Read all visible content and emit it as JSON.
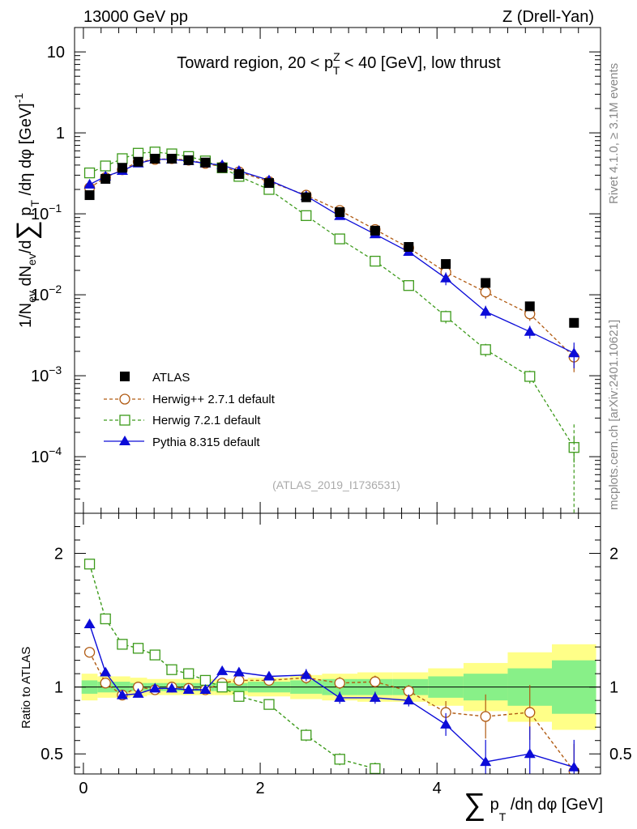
{
  "header": {
    "left": "13000 GeV pp",
    "right": "Z (Drell-Yan)"
  },
  "side_labels": {
    "rivet": "Rivet 4.1.0, ≥ 3.1M events",
    "mcplots": "mcplots.cern.ch [arXiv:2401.10621]"
  },
  "chart_data": [
    {
      "type": "scatter",
      "yscale": "log",
      "title": "Toward region, 20 < pTZ < 40 [GeV], low thrust",
      "title_parts": {
        "pre": "Toward region, 20 < p",
        "sup": "Z",
        "sub": "T",
        "post": " < 40 [GeV], low thrust"
      },
      "ylabel": "1/Nev dNev/d∑pT/dη dφ [GeV]-1",
      "ylabel_parts": [
        "1/N",
        "ev",
        " dN",
        "ev",
        "/d",
        "∑",
        " p",
        "T",
        " /dη dφ  [GeV]",
        "-1"
      ],
      "xlim": [
        -0.1,
        5.85
      ],
      "ylim": [
        2e-05,
        20
      ],
      "y_ticks": [
        {
          "value": 10,
          "label": "10"
        },
        {
          "value": 1,
          "label": "1"
        },
        {
          "value": 0.1,
          "label": "10",
          "exp": "−1"
        },
        {
          "value": 0.01,
          "label": "10",
          "exp": "−2"
        },
        {
          "value": 0.001,
          "label": "10",
          "exp": "−3"
        },
        {
          "value": 0.0001,
          "label": "10",
          "exp": "−4"
        }
      ],
      "watermark": "(ATLAS_2019_I1736531)",
      "legend_position": "bottom-left",
      "series": [
        {
          "name": "ATLAS",
          "color": "#000000",
          "marker": "square-filled",
          "line": "none",
          "x": [
            0.07,
            0.25,
            0.44,
            0.62,
            0.81,
            1.0,
            1.19,
            1.38,
            1.57,
            1.76,
            2.1,
            2.52,
            2.9,
            3.3,
            3.68,
            4.1,
            4.55,
            5.05,
            5.55
          ],
          "y": [
            0.17,
            0.27,
            0.37,
            0.44,
            0.48,
            0.48,
            0.46,
            0.43,
            0.37,
            0.31,
            0.24,
            0.16,
            0.105,
            0.062,
            0.039,
            0.024,
            0.014,
            0.0072,
            0.0045
          ]
        },
        {
          "name": "Herwig++ 2.7.1 default",
          "color": "#b05a12",
          "marker": "circle-open",
          "line": "dashed",
          "x": [
            0.07,
            0.25,
            0.44,
            0.62,
            0.81,
            1.0,
            1.19,
            1.38,
            1.57,
            1.76,
            2.1,
            2.52,
            2.9,
            3.3,
            3.68,
            4.1,
            4.55,
            5.05,
            5.55
          ],
          "y": [
            0.21,
            0.28,
            0.35,
            0.44,
            0.47,
            0.48,
            0.46,
            0.42,
            0.38,
            0.33,
            0.25,
            0.17,
            0.11,
            0.064,
            0.038,
            0.019,
            0.0108,
            0.0058,
            0.0017
          ]
        },
        {
          "name": "Herwig 7.2.1 default",
          "color": "#3c9a1a",
          "marker": "square-open",
          "line": "dashed",
          "x": [
            0.07,
            0.25,
            0.44,
            0.62,
            0.81,
            1.0,
            1.19,
            1.38,
            1.57,
            1.76,
            2.1,
            2.52,
            2.9,
            3.3,
            3.68,
            4.1,
            4.55,
            5.05,
            5.55
          ],
          "y": [
            0.32,
            0.39,
            0.48,
            0.56,
            0.58,
            0.55,
            0.51,
            0.45,
            0.37,
            0.29,
            0.2,
            0.095,
            0.049,
            0.026,
            0.013,
            0.0054,
            0.0021,
            0.00098,
            0.00013
          ]
        },
        {
          "name": "Pythia 8.315 default",
          "color": "#0c0cd8",
          "marker": "triangle-filled",
          "line": "solid",
          "x": [
            0.07,
            0.25,
            0.44,
            0.62,
            0.81,
            1.0,
            1.19,
            1.38,
            1.57,
            1.76,
            2.1,
            2.52,
            2.9,
            3.3,
            3.68,
            4.1,
            4.55,
            5.05,
            5.55
          ],
          "y": [
            0.23,
            0.29,
            0.34,
            0.42,
            0.47,
            0.47,
            0.45,
            0.42,
            0.4,
            0.34,
            0.26,
            0.166,
            0.094,
            0.056,
            0.034,
            0.016,
            0.0062,
            0.0035,
            0.0019
          ]
        }
      ]
    },
    {
      "type": "scatter",
      "ylabel": "Ratio to ATLAS",
      "xlabel": "∑pT/dη dφ [GeV]",
      "xlabel_parts": [
        "∑",
        " p",
        "T",
        " /dη dφ [GeV]"
      ],
      "xlim": [
        -0.1,
        5.85
      ],
      "ylim": [
        0.35,
        2.3
      ],
      "x_ticks": [
        {
          "value": 0,
          "label": "0"
        },
        {
          "value": 2,
          "label": "2"
        },
        {
          "value": 4,
          "label": "4"
        }
      ],
      "y_ticks": [
        {
          "value": 2,
          "label": "2"
        },
        {
          "value": 1,
          "label": "1"
        },
        {
          "value": 0.5,
          "label": "0.5"
        }
      ],
      "bands": {
        "x_edges": [
          -0.02,
          0.16,
          0.34,
          0.53,
          0.72,
          0.9,
          1.1,
          1.28,
          1.48,
          1.67,
          1.86,
          2.34,
          2.7,
          3.1,
          3.5,
          3.9,
          4.3,
          4.8,
          5.3,
          5.8
        ],
        "stat_syst": [
          0.1,
          0.08,
          0.08,
          0.07,
          0.06,
          0.06,
          0.06,
          0.06,
          0.06,
          0.06,
          0.07,
          0.09,
          0.1,
          0.11,
          0.11,
          0.14,
          0.18,
          0.26,
          0.32
        ],
        "stat": [
          0.05,
          0.04,
          0.04,
          0.03,
          0.03,
          0.03,
          0.03,
          0.03,
          0.03,
          0.03,
          0.04,
          0.05,
          0.06,
          0.06,
          0.06,
          0.08,
          0.1,
          0.14,
          0.2
        ],
        "outer_color": "#ffff88",
        "inner_color": "#88f088"
      },
      "series": [
        {
          "name": "Herwig++ 2.7.1 default",
          "color": "#b05a12",
          "x": [
            0.07,
            0.25,
            0.44,
            0.62,
            0.81,
            1.0,
            1.19,
            1.38,
            1.57,
            1.76,
            2.1,
            2.52,
            2.9,
            3.3,
            3.68,
            4.1,
            4.55,
            5.05,
            5.55
          ],
          "y": [
            1.26,
            1.03,
            0.94,
            1.0,
            0.98,
            1.0,
            0.99,
            0.98,
            1.03,
            1.05,
            1.05,
            1.07,
            1.03,
            1.04,
            0.97,
            0.81,
            0.78,
            0.81,
            0.37
          ]
        },
        {
          "name": "Herwig 7.2.1 default",
          "color": "#3c9a1a",
          "x": [
            0.07,
            0.25,
            0.44,
            0.62,
            0.81,
            1.0,
            1.19,
            1.38,
            1.57,
            1.76,
            2.1,
            2.52,
            2.9,
            3.3
          ],
          "y": [
            1.92,
            1.51,
            1.32,
            1.29,
            1.24,
            1.13,
            1.1,
            1.05,
            1.0,
            0.93,
            0.87,
            0.64,
            0.46,
            0.39
          ]
        },
        {
          "name": "Pythia 8.315 default",
          "color": "#0c0cd8",
          "x": [
            0.07,
            0.25,
            0.44,
            0.62,
            0.81,
            1.0,
            1.19,
            1.38,
            1.57,
            1.76,
            2.1,
            2.52,
            2.9,
            3.3,
            3.68,
            4.1,
            4.55,
            5.05,
            5.55
          ],
          "y": [
            1.47,
            1.11,
            0.94,
            0.95,
            0.99,
            0.99,
            0.98,
            0.98,
            1.12,
            1.11,
            1.08,
            1.09,
            0.92,
            0.92,
            0.9,
            0.72,
            0.44,
            0.5,
            0.4
          ]
        }
      ]
    }
  ]
}
